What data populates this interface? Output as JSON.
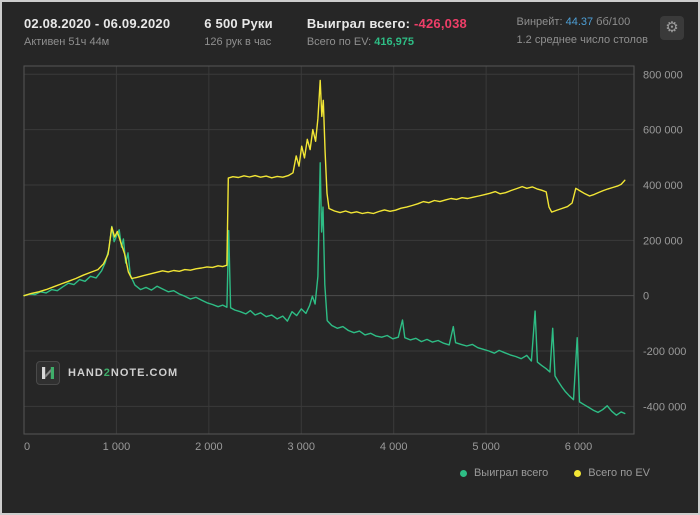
{
  "header": {
    "date_range": "02.08.2020 - 06.09.2020",
    "active_time": "Активен 51ч 44м",
    "hands": "6 500 Руки",
    "hands_per_hour": "126 рук в час",
    "won_label": "Выиграл всего:",
    "won_value": "-426,038",
    "ev_label": "Всего по EV:",
    "ev_value": "416,975",
    "winrate_label": "Винрейт:",
    "winrate_value": "44.37",
    "winrate_unit": "бб/100",
    "avg_tables": "1.2 среднее число столов"
  },
  "icons": {
    "gear": "⚙"
  },
  "logo": {
    "part1": "HAND",
    "part2": "2",
    "part3": "NOTE.COM"
  },
  "legend": [
    {
      "label": "Выиграл всего",
      "color": "#2ebd85"
    },
    {
      "label": "Всего по EV",
      "color": "#f2e635"
    }
  ],
  "chart_data": {
    "type": "line",
    "title": "",
    "xlabel": "",
    "ylabel": "",
    "xlim": [
      0,
      6600
    ],
    "ylim": [
      -500000,
      830000
    ],
    "grid": true,
    "legend_position": "bottom-right",
    "x_ticks": [
      {
        "v": 0,
        "label": "0"
      },
      {
        "v": 1000,
        "label": "1 000"
      },
      {
        "v": 2000,
        "label": "2 000"
      },
      {
        "v": 3000,
        "label": "3 000"
      },
      {
        "v": 4000,
        "label": "4 000"
      },
      {
        "v": 5000,
        "label": "5 000"
      },
      {
        "v": 6000,
        "label": "6 000"
      }
    ],
    "y_ticks": [
      {
        "v": 800000,
        "label": "800 000"
      },
      {
        "v": 600000,
        "label": "600 000"
      },
      {
        "v": 400000,
        "label": "400 000"
      },
      {
        "v": 200000,
        "label": "200 000"
      },
      {
        "v": 0,
        "label": "0"
      },
      {
        "v": -200000,
        "label": "-200 000"
      },
      {
        "v": -400000,
        "label": "-400 000"
      }
    ],
    "series": [
      {
        "name": "Выиграл всего",
        "color": "#2ebd85",
        "points": [
          [
            0,
            0
          ],
          [
            60,
            6000
          ],
          [
            120,
            4000
          ],
          [
            180,
            14000
          ],
          [
            240,
            10000
          ],
          [
            300,
            22000
          ],
          [
            360,
            18000
          ],
          [
            420,
            32000
          ],
          [
            480,
            45000
          ],
          [
            540,
            40000
          ],
          [
            600,
            58000
          ],
          [
            660,
            52000
          ],
          [
            720,
            70000
          ],
          [
            780,
            64000
          ],
          [
            840,
            90000
          ],
          [
            880,
            120000
          ],
          [
            920,
            170000
          ],
          [
            950,
            250000
          ],
          [
            975,
            195000
          ],
          [
            1000,
            215000
          ],
          [
            1030,
            238000
          ],
          [
            1055,
            175000
          ],
          [
            1075,
            205000
          ],
          [
            1100,
            118000
          ],
          [
            1125,
            155000
          ],
          [
            1150,
            75000
          ],
          [
            1200,
            38000
          ],
          [
            1260,
            22000
          ],
          [
            1320,
            30000
          ],
          [
            1380,
            20000
          ],
          [
            1440,
            34000
          ],
          [
            1500,
            24000
          ],
          [
            1560,
            14000
          ],
          [
            1620,
            18000
          ],
          [
            1680,
            6000
          ],
          [
            1740,
            -2000
          ],
          [
            1800,
            -12000
          ],
          [
            1860,
            -6000
          ],
          [
            1920,
            -16000
          ],
          [
            1980,
            -26000
          ],
          [
            2040,
            -32000
          ],
          [
            2100,
            -40000
          ],
          [
            2150,
            -34000
          ],
          [
            2195,
            -42000
          ],
          [
            2215,
            235000
          ],
          [
            2235,
            -44000
          ],
          [
            2280,
            -52000
          ],
          [
            2340,
            -58000
          ],
          [
            2400,
            -66000
          ],
          [
            2450,
            -54000
          ],
          [
            2500,
            -70000
          ],
          [
            2560,
            -62000
          ],
          [
            2620,
            -76000
          ],
          [
            2680,
            -70000
          ],
          [
            2740,
            -84000
          ],
          [
            2800,
            -74000
          ],
          [
            2850,
            -92000
          ],
          [
            2900,
            -58000
          ],
          [
            2950,
            -72000
          ],
          [
            3000,
            -48000
          ],
          [
            3050,
            -64000
          ],
          [
            3090,
            -36000
          ],
          [
            3120,
            -2000
          ],
          [
            3150,
            -30000
          ],
          [
            3180,
            70000
          ],
          [
            3205,
            480000
          ],
          [
            3220,
            230000
          ],
          [
            3235,
            320000
          ],
          [
            3255,
            40000
          ],
          [
            3280,
            -90000
          ],
          [
            3330,
            -108000
          ],
          [
            3390,
            -118000
          ],
          [
            3450,
            -112000
          ],
          [
            3510,
            -126000
          ],
          [
            3570,
            -134000
          ],
          [
            3630,
            -128000
          ],
          [
            3690,
            -142000
          ],
          [
            3750,
            -136000
          ],
          [
            3810,
            -146000
          ],
          [
            3870,
            -150000
          ],
          [
            3930,
            -144000
          ],
          [
            3990,
            -156000
          ],
          [
            4050,
            -150000
          ],
          [
            4095,
            -88000
          ],
          [
            4120,
            -152000
          ],
          [
            4180,
            -160000
          ],
          [
            4240,
            -154000
          ],
          [
            4300,
            -166000
          ],
          [
            4360,
            -158000
          ],
          [
            4420,
            -168000
          ],
          [
            4480,
            -162000
          ],
          [
            4540,
            -172000
          ],
          [
            4600,
            -178000
          ],
          [
            4645,
            -112000
          ],
          [
            4670,
            -170000
          ],
          [
            4730,
            -176000
          ],
          [
            4790,
            -182000
          ],
          [
            4850,
            -176000
          ],
          [
            4910,
            -188000
          ],
          [
            4970,
            -194000
          ],
          [
            5030,
            -200000
          ],
          [
            5090,
            -208000
          ],
          [
            5140,
            -198000
          ],
          [
            5200,
            -206000
          ],
          [
            5260,
            -214000
          ],
          [
            5320,
            -220000
          ],
          [
            5380,
            -228000
          ],
          [
            5440,
            -216000
          ],
          [
            5490,
            -236000
          ],
          [
            5530,
            -56000
          ],
          [
            5555,
            -240000
          ],
          [
            5600,
            -252000
          ],
          [
            5650,
            -264000
          ],
          [
            5690,
            -276000
          ],
          [
            5720,
            -118000
          ],
          [
            5745,
            -290000
          ],
          [
            5780,
            -310000
          ],
          [
            5820,
            -330000
          ],
          [
            5860,
            -348000
          ],
          [
            5900,
            -362000
          ],
          [
            5945,
            -376000
          ],
          [
            5985,
            -152000
          ],
          [
            6010,
            -384000
          ],
          [
            6060,
            -394000
          ],
          [
            6110,
            -404000
          ],
          [
            6160,
            -414000
          ],
          [
            6210,
            -422000
          ],
          [
            6260,
            -412000
          ],
          [
            6310,
            -398000
          ],
          [
            6360,
            -418000
          ],
          [
            6410,
            -432000
          ],
          [
            6460,
            -420000
          ],
          [
            6500,
            -426038
          ]
        ]
      },
      {
        "name": "Всего по EV",
        "color": "#f2e635",
        "points": [
          [
            0,
            0
          ],
          [
            80,
            8000
          ],
          [
            160,
            14000
          ],
          [
            240,
            22000
          ],
          [
            320,
            32000
          ],
          [
            400,
            42000
          ],
          [
            480,
            52000
          ],
          [
            560,
            62000
          ],
          [
            640,
            74000
          ],
          [
            720,
            84000
          ],
          [
            800,
            94000
          ],
          [
            860,
            115000
          ],
          [
            910,
            150000
          ],
          [
            950,
            248000
          ],
          [
            980,
            212000
          ],
          [
            1010,
            232000
          ],
          [
            1050,
            190000
          ],
          [
            1090,
            150000
          ],
          [
            1130,
            85000
          ],
          [
            1165,
            62000
          ],
          [
            1220,
            66000
          ],
          [
            1290,
            72000
          ],
          [
            1360,
            78000
          ],
          [
            1430,
            84000
          ],
          [
            1500,
            90000
          ],
          [
            1560,
            86000
          ],
          [
            1620,
            91000
          ],
          [
            1680,
            88000
          ],
          [
            1740,
            94000
          ],
          [
            1800,
            92000
          ],
          [
            1860,
            97000
          ],
          [
            1920,
            100000
          ],
          [
            1980,
            104000
          ],
          [
            2040,
            102000
          ],
          [
            2100,
            108000
          ],
          [
            2150,
            105000
          ],
          [
            2195,
            110000
          ],
          [
            2210,
            425000
          ],
          [
            2260,
            430000
          ],
          [
            2320,
            427000
          ],
          [
            2380,
            433000
          ],
          [
            2440,
            429000
          ],
          [
            2500,
            434000
          ],
          [
            2560,
            428000
          ],
          [
            2620,
            432000
          ],
          [
            2680,
            426000
          ],
          [
            2740,
            431000
          ],
          [
            2800,
            428000
          ],
          [
            2860,
            434000
          ],
          [
            2910,
            444000
          ],
          [
            2945,
            505000
          ],
          [
            2975,
            468000
          ],
          [
            3005,
            540000
          ],
          [
            3035,
            498000
          ],
          [
            3065,
            565000
          ],
          [
            3095,
            528000
          ],
          [
            3125,
            600000
          ],
          [
            3155,
            558000
          ],
          [
            3180,
            640000
          ],
          [
            3205,
            778000
          ],
          [
            3222,
            648000
          ],
          [
            3238,
            706000
          ],
          [
            3258,
            520000
          ],
          [
            3278,
            370000
          ],
          [
            3300,
            315000
          ],
          [
            3360,
            306000
          ],
          [
            3420,
            300000
          ],
          [
            3480,
            306000
          ],
          [
            3540,
            299000
          ],
          [
            3600,
            303000
          ],
          [
            3660,
            297000
          ],
          [
            3720,
            301000
          ],
          [
            3780,
            297000
          ],
          [
            3840,
            304000
          ],
          [
            3900,
            310000
          ],
          [
            3960,
            305000
          ],
          [
            4020,
            309000
          ],
          [
            4080,
            316000
          ],
          [
            4140,
            320000
          ],
          [
            4200,
            326000
          ],
          [
            4260,
            332000
          ],
          [
            4320,
            340000
          ],
          [
            4380,
            336000
          ],
          [
            4440,
            344000
          ],
          [
            4500,
            340000
          ],
          [
            4560,
            346000
          ],
          [
            4620,
            351000
          ],
          [
            4680,
            348000
          ],
          [
            4740,
            354000
          ],
          [
            4800,
            351000
          ],
          [
            4860,
            356000
          ],
          [
            4920,
            360000
          ],
          [
            4980,
            365000
          ],
          [
            5040,
            370000
          ],
          [
            5100,
            376000
          ],
          [
            5150,
            368000
          ],
          [
            5210,
            372000
          ],
          [
            5270,
            380000
          ],
          [
            5330,
            387000
          ],
          [
            5390,
            394000
          ],
          [
            5440,
            388000
          ],
          [
            5500,
            393000
          ],
          [
            5550,
            386000
          ],
          [
            5600,
            381000
          ],
          [
            5650,
            375000
          ],
          [
            5680,
            320000
          ],
          [
            5710,
            302000
          ],
          [
            5760,
            308000
          ],
          [
            5820,
            315000
          ],
          [
            5880,
            322000
          ],
          [
            5930,
            335000
          ],
          [
            5970,
            388000
          ],
          [
            6020,
            378000
          ],
          [
            6070,
            368000
          ],
          [
            6120,
            360000
          ],
          [
            6170,
            366000
          ],
          [
            6220,
            373000
          ],
          [
            6270,
            380000
          ],
          [
            6320,
            386000
          ],
          [
            6370,
            391000
          ],
          [
            6420,
            396000
          ],
          [
            6460,
            402000
          ],
          [
            6500,
            416975
          ]
        ]
      }
    ]
  }
}
